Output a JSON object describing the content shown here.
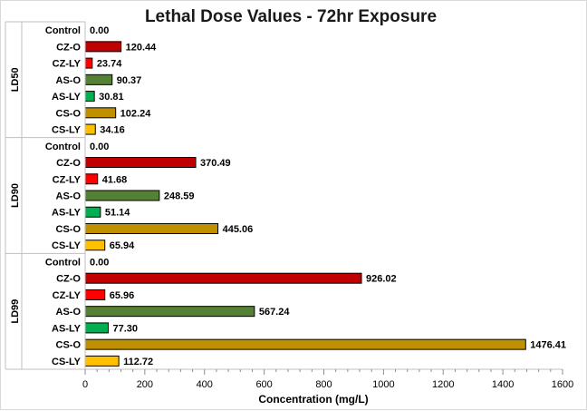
{
  "chart_data": {
    "type": "bar",
    "orientation": "horizontal",
    "title": "Lethal Dose Values - 72hr Exposure",
    "xlabel": "Concentration (mg/L)",
    "ylabel": "",
    "xlim": [
      0,
      1600
    ],
    "xticks": [
      "0",
      "200",
      "400",
      "600",
      "800",
      "1000",
      "1200",
      "1400",
      "1600"
    ],
    "grid": false,
    "groups": [
      {
        "name": "LD50",
        "categories": [
          "Control",
          "CZ-O",
          "CZ-LY",
          "AS-O",
          "AS-LY",
          "CS-O",
          "CS-LY"
        ],
        "values": [
          0,
          120.44,
          23.74,
          90.37,
          30.81,
          102.24,
          34.16
        ],
        "labels": [
          "0.00",
          "120.44",
          "23.74",
          "90.37",
          "30.81",
          "102.24",
          "34.16"
        ]
      },
      {
        "name": "LD90",
        "categories": [
          "Control",
          "CZ-O",
          "CZ-LY",
          "AS-O",
          "AS-LY",
          "CS-O",
          "CS-LY"
        ],
        "values": [
          0,
          370.49,
          41.68,
          248.59,
          51.14,
          445.06,
          65.94
        ],
        "labels": [
          "0.00",
          "370.49",
          "41.68",
          "248.59",
          "51.14",
          "445.06",
          "65.94"
        ]
      },
      {
        "name": "LD99",
        "categories": [
          "Control",
          "CZ-O",
          "CZ-LY",
          "AS-O",
          "AS-LY",
          "CS-O",
          "CS-LY"
        ],
        "values": [
          0,
          926.02,
          65.96,
          567.24,
          77.3,
          1476.41,
          112.72
        ],
        "labels": [
          "0.00",
          "926.02",
          "65.96",
          "567.24",
          "77.30",
          "1476.41",
          "112.72"
        ]
      }
    ],
    "category_colors": {
      "Control": "#ffffff",
      "CZ-O": "#c00000",
      "CZ-LY": "#ff0000",
      "AS-O": "#548235",
      "AS-LY": "#00b050",
      "CS-O": "#bf9000",
      "CS-LY": "#ffc000"
    }
  }
}
